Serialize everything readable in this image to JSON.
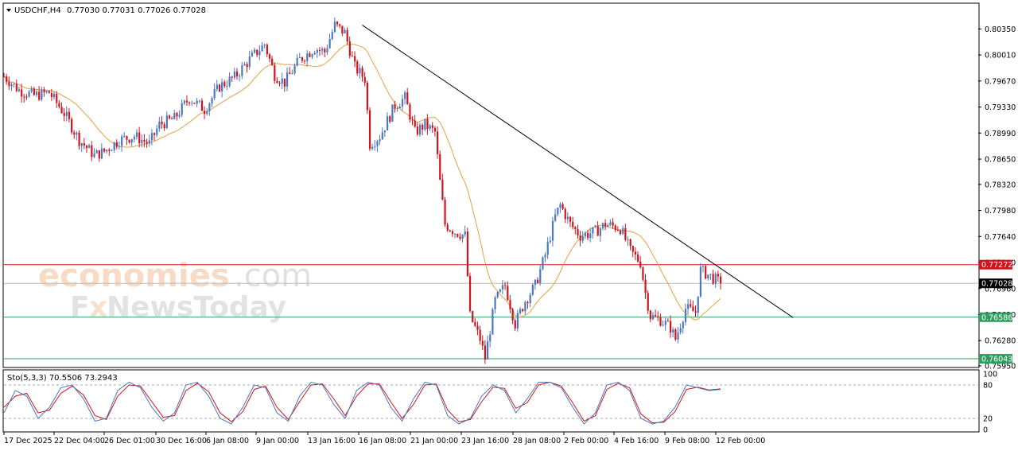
{
  "header": {
    "symbol": "USDCHF,H4",
    "ohlc": "0.77030 0.77031 0.77026 0.77028"
  },
  "watermark": {
    "brand_part1": "economies",
    "brand_part2": ".com",
    "brand_line2_a": "F",
    "brand_line2_b": "x",
    "brand_line2_c": "NewsToday"
  },
  "colors": {
    "bull": "#4a78c2",
    "bear": "#d0141c",
    "ma": "#e8a040",
    "trend": "#000000",
    "resistance": "#d0141c",
    "support": "#2e9e5e",
    "current": "#000000"
  },
  "chart_data": {
    "type": "line",
    "title": "",
    "instrument": "USDCHF",
    "timeframe": "H4",
    "ylim": [
      0.7595,
      0.8052
    ],
    "y_ticks": [
      "0.80350",
      "0.80010",
      "0.79670",
      "0.79330",
      "0.78990",
      "0.78650",
      "0.78320",
      "0.77980",
      "0.77640",
      "0.77300",
      "0.76960",
      "0.76620",
      "0.76280",
      "0.75950"
    ],
    "x_ticks": [
      "17 Dec 2025",
      "22 Dec 04:00",
      "26 Dec 01:00",
      "30 Dec 16:00",
      "6 Jan 08:00",
      "9 Jan 00:00",
      "13 Jan 16:00",
      "16 Jan 08:00",
      "21 Jan 00:00",
      "23 Jan 16:00",
      "28 Jan 08:00",
      "2 Feb 00:00",
      "4 Feb 16:00",
      "9 Feb 08:00",
      "12 Feb 00:00"
    ],
    "path": [
      [
        0,
        0.7973
      ],
      [
        6,
        0.7955
      ],
      [
        12,
        0.7948
      ],
      [
        18,
        0.7952
      ],
      [
        24,
        0.7925
      ],
      [
        30,
        0.789
      ],
      [
        36,
        0.787
      ],
      [
        40,
        0.7875
      ],
      [
        46,
        0.789
      ],
      [
        52,
        0.7895
      ],
      [
        58,
        0.7885
      ],
      [
        62,
        0.791
      ],
      [
        68,
        0.7918
      ],
      [
        74,
        0.7945
      ],
      [
        80,
        0.793
      ],
      [
        86,
        0.796
      ],
      [
        92,
        0.7972
      ],
      [
        98,
        0.7995
      ],
      [
        104,
        0.8015
      ],
      [
        108,
        0.7975
      ],
      [
        112,
        0.7965
      ],
      [
        118,
        0.7995
      ],
      [
        124,
        0.801
      ],
      [
        128,
        0.8005
      ],
      [
        132,
        0.804
      ],
      [
        136,
        0.803
      ],
      [
        140,
        0.7985
      ],
      [
        144,
        0.797
      ],
      [
        146,
        0.7885
      ],
      [
        150,
        0.7895
      ],
      [
        156,
        0.7935
      ],
      [
        160,
        0.7945
      ],
      [
        164,
        0.79
      ],
      [
        168,
        0.791
      ],
      [
        172,
        0.79
      ],
      [
        174,
        0.7835
      ],
      [
        176,
        0.778
      ],
      [
        180,
        0.777
      ],
      [
        184,
        0.7765
      ],
      [
        186,
        0.766
      ],
      [
        190,
        0.763
      ],
      [
        192,
        0.7605
      ],
      [
        196,
        0.768
      ],
      [
        200,
        0.77
      ],
      [
        204,
        0.765
      ],
      [
        208,
        0.768
      ],
      [
        212,
        0.77
      ],
      [
        216,
        0.774
      ],
      [
        220,
        0.779
      ],
      [
        222,
        0.7805
      ],
      [
        226,
        0.778
      ],
      [
        230,
        0.7765
      ],
      [
        236,
        0.777
      ],
      [
        240,
        0.778
      ],
      [
        246,
        0.7775
      ],
      [
        250,
        0.7745
      ],
      [
        254,
        0.773
      ],
      [
        256,
        0.769
      ],
      [
        258,
        0.766
      ],
      [
        262,
        0.7655
      ],
      [
        266,
        0.7645
      ],
      [
        268,
        0.763
      ],
      [
        272,
        0.767
      ],
      [
        276,
        0.7665
      ],
      [
        278,
        0.772
      ],
      [
        282,
        0.7712
      ],
      [
        286,
        0.7703
      ]
    ],
    "ma_period_label": "",
    "levels": {
      "resistance": 0.77272,
      "current": 0.77028,
      "support1": 0.76586,
      "support2": 0.76043
    },
    "level_labels": {
      "resistance": "0.77272",
      "current": "0.77028",
      "support1": "0.76586",
      "support2": "0.76043"
    },
    "trendline": [
      [
        0.804,
        0.8032
      ],
      [
        1.0,
        0.7658
      ]
    ],
    "stochastic": {
      "label": "Sto(5,3,3) 70.5506 73.2943",
      "ylim": [
        0,
        100
      ],
      "y_ticks": [
        "100",
        "80",
        "20",
        "0"
      ],
      "levels": [
        80,
        20
      ],
      "main": [
        30,
        70,
        60,
        20,
        40,
        75,
        80,
        55,
        15,
        20,
        70,
        85,
        75,
        40,
        15,
        30,
        80,
        85,
        60,
        20,
        10,
        40,
        80,
        75,
        30,
        15,
        60,
        85,
        80,
        45,
        20,
        70,
        85,
        80,
        40,
        15,
        55,
        85,
        80,
        25,
        10,
        20,
        60,
        80,
        70,
        30,
        55,
        85,
        85,
        75,
        40,
        10,
        30,
        80,
        85,
        70,
        20,
        10,
        15,
        40,
        80,
        75,
        70,
        72
      ],
      "signal": [
        40,
        60,
        65,
        30,
        35,
        65,
        78,
        62,
        25,
        18,
        60,
        80,
        78,
        50,
        22,
        25,
        70,
        83,
        68,
        30,
        14,
        32,
        72,
        78,
        40,
        18,
        50,
        80,
        82,
        55,
        25,
        60,
        82,
        82,
        50,
        20,
        45,
        80,
        82,
        35,
        14,
        18,
        50,
        76,
        74,
        38,
        48,
        80,
        85,
        78,
        48,
        15,
        25,
        72,
        83,
        75,
        28,
        12,
        13,
        32,
        72,
        76,
        71,
        73
      ]
    }
  }
}
